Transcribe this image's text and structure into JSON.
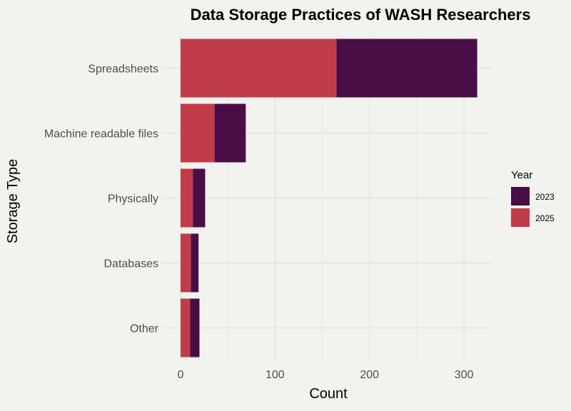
{
  "chart_data": {
    "type": "bar",
    "orientation": "horizontal",
    "stacked": true,
    "title": "Data Storage Practices of WASH Researchers",
    "xlabel": "Count",
    "ylabel": "Storage Type",
    "categories": [
      "Spreadsheets",
      "Machine readable files",
      "Physically",
      "Databases",
      "Other"
    ],
    "series": [
      {
        "name": "2025",
        "color": "#c13c4a",
        "values": [
          165,
          36,
          13,
          11,
          10
        ]
      },
      {
        "name": "2023",
        "color": "#4a0e46",
        "values": [
          149,
          33,
          13,
          8,
          10
        ]
      }
    ],
    "xlim": [
      0,
      330
    ],
    "xticks": [
      "0",
      "100",
      "200",
      "300"
    ],
    "grid": true,
    "legend": {
      "title": "Year",
      "entries": [
        "2023",
        "2025"
      ],
      "placement": "right"
    }
  }
}
